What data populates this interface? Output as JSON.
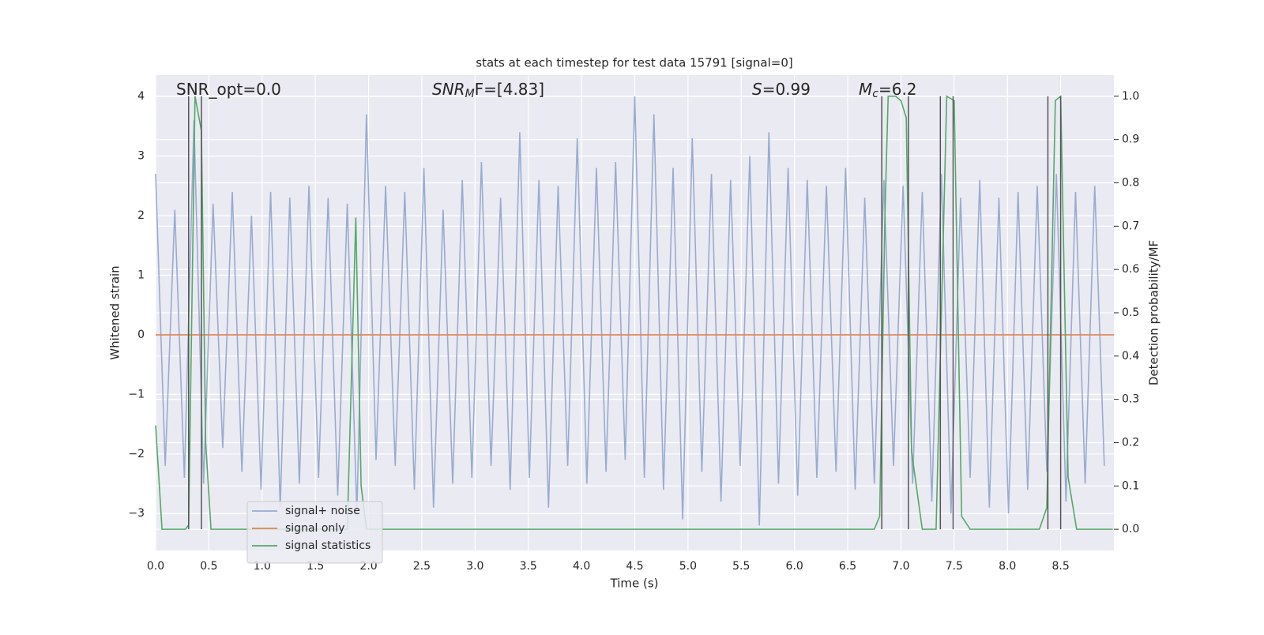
{
  "chart_data": {
    "type": "line",
    "title": "stats at each timestep for test data 15791 [signal=0]",
    "xlabel": "Time (s)",
    "ylabel": "Whitened strain",
    "y2label": "Detection probability/MF",
    "annotations": [
      [
        "SNR_opt=0.0"
      ],
      [
        "SNR",
        "M",
        "F=[4.83]"
      ],
      [
        "S",
        "=0.99"
      ],
      [
        "M",
        "c",
        "=6.2"
      ]
    ],
    "xlim": [
      0,
      9.0
    ],
    "ylim": [
      -3.62,
      4.36
    ],
    "y2lim": [
      -0.049,
      1.049
    ],
    "xticks": [
      {
        "value": 0,
        "label": "0.0"
      },
      {
        "value": 0.5,
        "label": "0.5"
      },
      {
        "value": 1,
        "label": "1.0"
      },
      {
        "value": 1.5,
        "label": "1.5"
      },
      {
        "value": 2,
        "label": "2.0"
      },
      {
        "value": 2.5,
        "label": "2.5"
      },
      {
        "value": 3,
        "label": "3.0"
      },
      {
        "value": 3.5,
        "label": "3.5"
      },
      {
        "value": 4,
        "label": "4.0"
      },
      {
        "value": 4.5,
        "label": "4.5"
      },
      {
        "value": 5,
        "label": "5.0"
      },
      {
        "value": 5.5,
        "label": "5.5"
      },
      {
        "value": 6,
        "label": "6.0"
      },
      {
        "value": 6.5,
        "label": "6.5"
      },
      {
        "value": 7,
        "label": "7.0"
      },
      {
        "value": 7.5,
        "label": "7.5"
      },
      {
        "value": 8,
        "label": "8.0"
      },
      {
        "value": 8.5,
        "label": "8.5"
      }
    ],
    "yticks": [
      {
        "value": -3,
        "label": "−3"
      },
      {
        "value": -2,
        "label": "−2"
      },
      {
        "value": -1,
        "label": "−1"
      },
      0,
      1,
      2,
      3,
      4
    ],
    "y2ticks": [
      {
        "value": 0,
        "label": "0.0"
      },
      {
        "value": 0.1,
        "label": "0.1"
      },
      {
        "value": 0.2,
        "label": "0.2"
      },
      {
        "value": 0.3,
        "label": "0.3"
      },
      {
        "value": 0.4,
        "label": "0.4"
      },
      {
        "value": 0.5,
        "label": "0.5"
      },
      {
        "value": 0.6,
        "label": "0.6"
      },
      {
        "value": 0.7,
        "label": "0.7"
      },
      {
        "value": 0.8,
        "label": "0.8"
      },
      {
        "value": 0.9,
        "label": "0.9"
      },
      {
        "value": 1,
        "label": "1.0"
      }
    ],
    "grid": true,
    "legend": "lower left",
    "markers_x": [
      0.31,
      0.43,
      6.82,
      7.07,
      7.37,
      7.49,
      8.38,
      8.5
    ],
    "marker_color": "#555555",
    "series": [
      {
        "name": "signal+ noise",
        "color": "#9aabd0",
        "x": [
          0,
          0.09,
          0.18,
          0.27,
          0.36,
          0.45,
          0.54,
          0.63,
          0.72,
          0.81,
          0.9,
          0.99,
          1.08,
          1.17,
          1.26,
          1.35,
          1.44,
          1.53,
          1.62,
          1.71,
          1.8,
          1.89,
          1.98,
          2.07,
          2.16,
          2.25,
          2.34,
          2.43,
          2.52,
          2.61,
          2.7,
          2.79,
          2.88,
          2.97,
          3.06,
          3.15,
          3.24,
          3.33,
          3.42,
          3.51,
          3.6,
          3.69,
          3.78,
          3.87,
          3.96,
          4.05,
          4.14,
          4.23,
          4.32,
          4.41,
          4.5,
          4.59,
          4.68,
          4.77,
          4.86,
          4.95,
          5.04,
          5.13,
          5.22,
          5.31,
          5.4,
          5.49,
          5.58,
          5.67,
          5.76,
          5.85,
          5.94,
          6.03,
          6.12,
          6.21,
          6.3,
          6.39,
          6.48,
          6.57,
          6.66,
          6.75,
          6.84,
          6.93,
          7.02,
          7.11,
          7.2,
          7.29,
          7.38,
          7.47,
          7.56,
          7.65,
          7.74,
          7.83,
          7.92,
          8.01,
          8.1,
          8.19,
          8.28,
          8.37,
          8.46,
          8.55,
          8.64,
          8.73,
          8.82,
          8.91
        ],
        "values": [
          2.7,
          -2.2,
          2.1,
          -2.4,
          3.6,
          -2.5,
          2.2,
          -1.9,
          2.4,
          -2.3,
          2.0,
          -2.6,
          2.4,
          -2.9,
          2.3,
          -2.5,
          2.5,
          -2.4,
          2.3,
          -2.7,
          2.2,
          -3.0,
          3.7,
          -2.1,
          2.5,
          -2.2,
          2.4,
          -2.6,
          2.8,
          -2.9,
          2.1,
          -2.5,
          2.6,
          -2.4,
          2.9,
          -2.2,
          2.3,
          -2.6,
          3.4,
          -2.4,
          2.6,
          -2.9,
          2.5,
          -2.2,
          3.3,
          -2.5,
          2.8,
          -2.3,
          2.9,
          -2.1,
          4.0,
          -2.4,
          3.7,
          -2.6,
          2.8,
          -3.1,
          3.3,
          -2.3,
          2.7,
          -2.8,
          2.6,
          -2.2,
          3.0,
          -3.2,
          3.4,
          -2.5,
          2.8,
          -2.7,
          2.6,
          -2.4,
          2.5,
          -2.3,
          2.8,
          -2.6,
          2.3,
          -2.5,
          2.6,
          -2.2,
          2.5,
          -2.5,
          2.4,
          -2.8,
          2.7,
          -3.0,
          2.3,
          -2.4,
          2.6,
          -2.9,
          2.3,
          -3.0,
          2.4,
          -2.6,
          2.5,
          -2.3,
          2.7,
          -2.8,
          2.4,
          -2.5,
          2.5,
          -2.2
        ]
      },
      {
        "name": "signal only",
        "color": "#dd8452",
        "x": [
          0,
          9.0
        ],
        "values": [
          0,
          0
        ]
      },
      {
        "name": "signal statistics",
        "color": "#55a868",
        "axis": "y2",
        "x": [
          0,
          0.06,
          0.28,
          0.31,
          0.37,
          0.43,
          0.47,
          0.52,
          1.8,
          1.88,
          1.93,
          1.98,
          6.75,
          6.8,
          6.85,
          6.88,
          6.95,
          7.0,
          7.05,
          7.1,
          7.2,
          7.33,
          7.37,
          7.43,
          7.5,
          7.57,
          7.65,
          8.3,
          8.37,
          8.45,
          8.5,
          8.57,
          8.65,
          8.99
        ],
        "values": [
          0.24,
          0,
          0,
          0.01,
          1.0,
          0.92,
          0.2,
          0,
          0,
          0.72,
          0.1,
          0,
          0,
          0.03,
          0.73,
          1.0,
          1.0,
          0.99,
          0.95,
          0.18,
          0,
          0,
          0.4,
          1.0,
          0.99,
          0.03,
          0,
          0,
          0.05,
          0.99,
          1.0,
          0.12,
          0,
          0
        ]
      }
    ]
  }
}
